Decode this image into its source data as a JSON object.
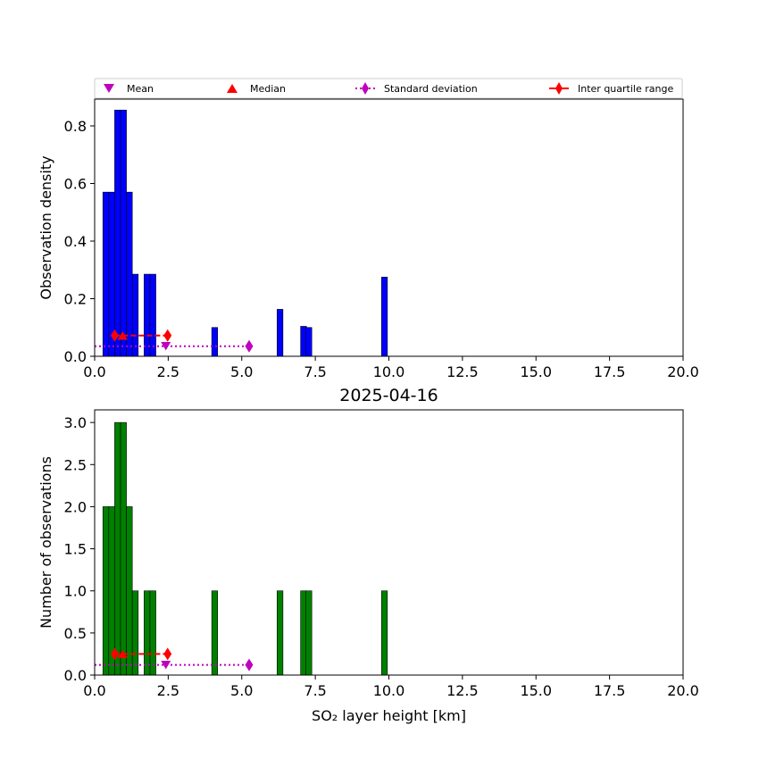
{
  "legend": {
    "mean": "Mean",
    "median": "Median",
    "std": "Standard deviation",
    "iqr": "Inter quartile range"
  },
  "colors": {
    "density_bar": "#0000ff",
    "count_bar": "#008000",
    "mean": "#bf00bf",
    "median": "#ff0000",
    "std": "#bf00bf",
    "iqr": "#ff0000",
    "edge": "#000000"
  },
  "chart_data": [
    {
      "type": "bar",
      "title": "",
      "xlabel": "",
      "ylabel": "Observation density",
      "xlim": [
        0,
        20
      ],
      "ylim": [
        0,
        0.893
      ],
      "xticks": [
        0,
        2.5,
        5,
        7.5,
        10,
        12.5,
        15,
        17.5,
        20
      ],
      "xtick_labels": [
        "0.0",
        "2.5",
        "5.0",
        "7.5",
        "10.0",
        "12.5",
        "15.0",
        "17.5",
        "20.0"
      ],
      "yticks": [
        0,
        0.2,
        0.4,
        0.6,
        0.8
      ],
      "ytick_labels": [
        "0.0",
        "0.2",
        "0.4",
        "0.6",
        "0.8"
      ],
      "bar_width": 0.2,
      "bars": [
        {
          "x": 0.38,
          "value": 0.57
        },
        {
          "x": 0.58,
          "value": 0.57
        },
        {
          "x": 0.78,
          "value": 0.855
        },
        {
          "x": 0.98,
          "value": 0.855
        },
        {
          "x": 1.18,
          "value": 0.57
        },
        {
          "x": 1.38,
          "value": 0.285
        },
        {
          "x": 1.78,
          "value": 0.285
        },
        {
          "x": 1.98,
          "value": 0.285
        },
        {
          "x": 4.08,
          "value": 0.1
        },
        {
          "x": 6.3,
          "value": 0.163
        },
        {
          "x": 7.1,
          "value": 0.104
        },
        {
          "x": 7.28,
          "value": 0.1
        },
        {
          "x": 9.85,
          "value": 0.275
        }
      ],
      "mean": {
        "x": 2.42,
        "y": 0.035
      },
      "median": {
        "x": 0.95,
        "y": 0.072
      },
      "std": {
        "x": [
          0,
          5.25
        ],
        "y": 0.035
      },
      "iqr": {
        "x": [
          0.68,
          2.48
        ],
        "y": 0.072
      }
    },
    {
      "type": "bar",
      "title": "2025-04-16",
      "xlabel": "SO₂ layer height [km]",
      "ylabel": "Number of observations",
      "xlim": [
        0,
        20
      ],
      "ylim": [
        0,
        3.15
      ],
      "xticks": [
        0,
        2.5,
        5,
        7.5,
        10,
        12.5,
        15,
        17.5,
        20
      ],
      "xtick_labels": [
        "0.0",
        "2.5",
        "5.0",
        "7.5",
        "10.0",
        "12.5",
        "15.0",
        "17.5",
        "20.0"
      ],
      "yticks": [
        0,
        0.5,
        1,
        1.5,
        2,
        2.5,
        3
      ],
      "ytick_labels": [
        "0.0",
        "0.5",
        "1.0",
        "1.5",
        "2.0",
        "2.5",
        "3.0"
      ],
      "bar_width": 0.2,
      "bars": [
        {
          "x": 0.38,
          "value": 2
        },
        {
          "x": 0.58,
          "value": 2
        },
        {
          "x": 0.78,
          "value": 3
        },
        {
          "x": 0.98,
          "value": 3
        },
        {
          "x": 1.18,
          "value": 2
        },
        {
          "x": 1.38,
          "value": 1
        },
        {
          "x": 1.78,
          "value": 1
        },
        {
          "x": 1.98,
          "value": 1
        },
        {
          "x": 4.08,
          "value": 1
        },
        {
          "x": 6.3,
          "value": 1
        },
        {
          "x": 7.1,
          "value": 1
        },
        {
          "x": 7.28,
          "value": 1
        },
        {
          "x": 9.85,
          "value": 1
        }
      ],
      "mean": {
        "x": 2.42,
        "y": 0.12
      },
      "median": {
        "x": 0.95,
        "y": 0.25
      },
      "std": {
        "x": [
          0,
          5.25
        ],
        "y": 0.12
      },
      "iqr": {
        "x": [
          0.68,
          2.48
        ],
        "y": 0.25
      }
    }
  ]
}
